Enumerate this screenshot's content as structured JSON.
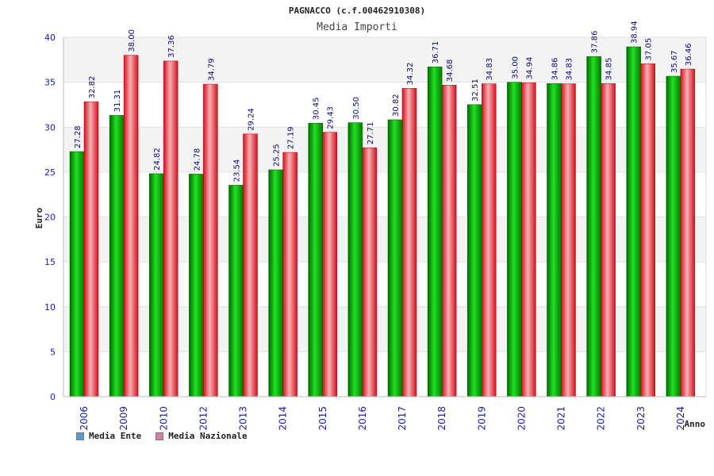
{
  "chart_data": {
    "type": "bar",
    "title": "PAGNACCO (c.f.00462910308)",
    "subtitle": "Media Importi",
    "xlabel": "Anno",
    "ylabel": "Euro",
    "ylim": [
      0,
      40
    ],
    "yticks": [
      0,
      5,
      10,
      15,
      20,
      25,
      30,
      35,
      40
    ],
    "grid": true,
    "legend_position": "bottom-left",
    "categories": [
      "2006",
      "2009",
      "2010",
      "2012",
      "2013",
      "2014",
      "2015",
      "2016",
      "2017",
      "2018",
      "2019",
      "2020",
      "2021",
      "2022",
      "2023",
      "2024"
    ],
    "series": [
      {
        "name": "Media Ente",
        "color": "#00b000",
        "legend_color": "#5b9bd5",
        "values": [
          27.28,
          31.31,
          24.82,
          24.78,
          23.54,
          25.25,
          30.45,
          30.5,
          30.82,
          36.71,
          32.51,
          35.0,
          34.86,
          37.86,
          38.94,
          35.67
        ],
        "labels": [
          "27.28",
          "31.31",
          "24.82",
          "24.78",
          "23.54",
          "25.25",
          "30.45",
          "30.50",
          "30.82",
          "36.71",
          "32.51",
          "35.00",
          "34.86",
          "37.86",
          "38.94",
          "35.67"
        ]
      },
      {
        "name": "Media Nazionale",
        "color": "#e0101c",
        "legend_color": "#d77fa5",
        "values": [
          32.82,
          38.0,
          37.36,
          34.79,
          29.24,
          27.19,
          29.43,
          27.71,
          34.32,
          34.68,
          34.83,
          34.94,
          34.83,
          34.85,
          37.05,
          36.46
        ],
        "labels": [
          "32.82",
          "38.00",
          "37.36",
          "34.79",
          "29.24",
          "27.19",
          "29.43",
          "27.71",
          "34.32",
          "34.68",
          "34.83",
          "34.94",
          "34.83",
          "34.85",
          "37.05",
          "36.46"
        ]
      }
    ]
  }
}
